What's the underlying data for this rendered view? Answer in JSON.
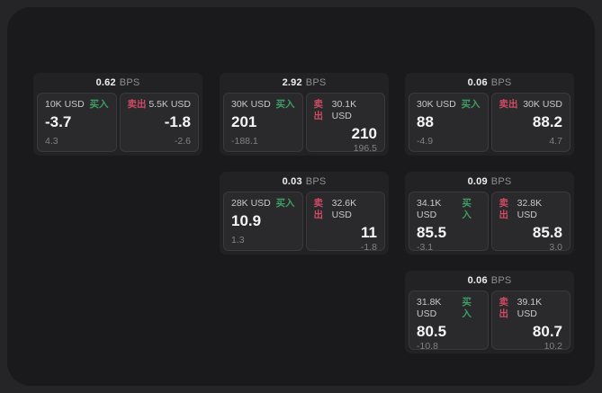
{
  "colors": {
    "page_bg": "#252527",
    "board_bg": "#1a1a1c",
    "card_bg": "#222225",
    "panel_bg": "#2a2a2d",
    "buy_accent": "#3e9e63",
    "sell_accent": "#cf4a63"
  },
  "labels": {
    "bps_unit": "BPS",
    "buy": "买入",
    "sell": "卖出"
  },
  "cards": [
    {
      "bps": "0.62",
      "buy": {
        "amount": "10K USD",
        "price": "-3.7",
        "delta": "4.3"
      },
      "sell": {
        "amount": "5.5K USD",
        "price": "-1.8",
        "delta": "-2.6"
      }
    },
    {
      "bps": "2.92",
      "buy": {
        "amount": "30K USD",
        "price": "201",
        "delta": "-188.1"
      },
      "sell": {
        "amount": "30.1K USD",
        "price": "210",
        "delta": "196.5"
      }
    },
    {
      "bps": "0.06",
      "buy": {
        "amount": "30K USD",
        "price": "88",
        "delta": "-4.9"
      },
      "sell": {
        "amount": "30K USD",
        "price": "88.2",
        "delta": "4.7"
      }
    },
    {
      "bps": "0.03",
      "buy": {
        "amount": "28K USD",
        "price": "10.9",
        "delta": "1.3"
      },
      "sell": {
        "amount": "32.6K USD",
        "price": "11",
        "delta": "-1.8"
      }
    },
    {
      "bps": "0.09",
      "buy": {
        "amount": "34.1K USD",
        "price": "85.5",
        "delta": "-3.1"
      },
      "sell": {
        "amount": "32.8K USD",
        "price": "85.8",
        "delta": "3.0"
      }
    },
    {
      "bps": "0.06",
      "buy": {
        "amount": "31.8K USD",
        "price": "80.5",
        "delta": "-10.8"
      },
      "sell": {
        "amount": "39.1K USD",
        "price": "80.7",
        "delta": "10.2"
      }
    }
  ]
}
